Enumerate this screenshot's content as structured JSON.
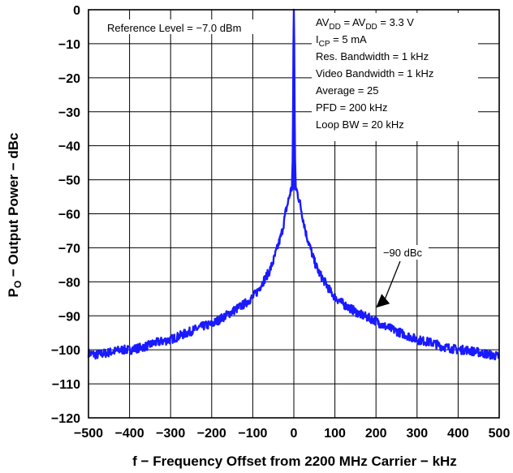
{
  "chart_data": {
    "type": "line",
    "title": "",
    "xlabel": "f − Frequency Offset from 2200 MHz Carrier − kHz",
    "ylabel_main": "P",
    "ylabel_sub": "O",
    "ylabel_rest": " − Output Power − dBc",
    "xlim": [
      -500,
      500
    ],
    "ylim": [
      -120,
      0
    ],
    "x_ticks": [
      -500,
      -400,
      -300,
      -200,
      -100,
      0,
      100,
      200,
      300,
      400,
      500
    ],
    "x_tick_labels": [
      "−500",
      "−400",
      "−300",
      "−200",
      "−100",
      "0",
      "100",
      "200",
      "300",
      "400",
      "500"
    ],
    "y_ticks": [
      0,
      -10,
      -20,
      -30,
      -40,
      -50,
      -60,
      -70,
      -80,
      -90,
      -100,
      -110,
      -120
    ],
    "y_tick_labels": [
      "0",
      "−10",
      "−20",
      "−30",
      "−40",
      "−50",
      "−60",
      "−70",
      "−80",
      "−90",
      "−100",
      "−110",
      "−120"
    ],
    "grid": true,
    "series_color": "#1a1aff",
    "series": [
      {
        "x": [
          -500,
          -480,
          -460,
          -440,
          -420,
          -400,
          -380,
          -360,
          -340,
          -320,
          -300,
          -280,
          -260,
          -240,
          -220,
          -200,
          -180,
          -160,
          -140,
          -120,
          -100,
          -90,
          -80,
          -70,
          -60,
          -50,
          -40,
          -30,
          -25,
          -20,
          -15,
          -10,
          -7,
          -5,
          -3,
          -2,
          -1,
          0,
          1,
          2,
          3,
          5,
          7,
          10,
          15,
          20,
          25,
          30,
          40,
          50,
          60,
          70,
          80,
          90,
          100,
          120,
          140,
          160,
          180,
          200,
          220,
          240,
          260,
          280,
          300,
          320,
          340,
          360,
          380,
          400,
          420,
          440,
          460,
          480,
          500
        ],
        "y": [
          -101,
          -101.5,
          -101,
          -100.5,
          -100,
          -100,
          -99.5,
          -99,
          -98,
          -97.5,
          -97,
          -96,
          -95,
          -94,
          -93,
          -92.5,
          -91,
          -89.5,
          -88,
          -86.5,
          -84.5,
          -83,
          -81,
          -79,
          -77,
          -74,
          -70,
          -66,
          -63,
          -59.5,
          -57,
          -54.5,
          -53,
          -52.5,
          -45,
          -30,
          -10,
          0,
          -10,
          -30,
          -45,
          -52.5,
          -53,
          -54.5,
          -57,
          -60,
          -63,
          -66,
          -70,
          -74,
          -77,
          -79,
          -81,
          -83,
          -84.5,
          -86.5,
          -88,
          -89.5,
          -90.5,
          -91.5,
          -93,
          -94,
          -95,
          -96,
          -97,
          -97.5,
          -98,
          -99,
          -99.5,
          -100,
          -100,
          -100.5,
          -101,
          -101.5,
          -102
        ]
      }
    ],
    "annotations": {
      "reference_level": "Reference Level = −7.0 dBm",
      "marker_label": "−90 dBc",
      "marker_point": {
        "x": 200,
        "y": -90
      }
    },
    "conditions": [
      {
        "text": "AV",
        "sub": "DD",
        "text2": " = AV",
        "sub2": "DD",
        "text3": " = 3.3 V"
      },
      {
        "text": "I",
        "sub": "CP",
        "text2": " = 5 mA",
        "sub2": "",
        "text3": ""
      },
      {
        "text": "Res. Bandwidth = 1 kHz",
        "sub": "",
        "text2": "",
        "sub2": "",
        "text3": ""
      },
      {
        "text": "Video Bandwidth = 1 kHz",
        "sub": "",
        "text2": "",
        "sub2": "",
        "text3": ""
      },
      {
        "text": "Average = 25",
        "sub": "",
        "text2": "",
        "sub2": "",
        "text3": ""
      },
      {
        "text": "PFD = 200 kHz",
        "sub": "",
        "text2": "",
        "sub2": "",
        "text3": ""
      },
      {
        "text": "Loop BW = 20 kHz",
        "sub": "",
        "text2": "",
        "sub2": "",
        "text3": ""
      }
    ]
  }
}
